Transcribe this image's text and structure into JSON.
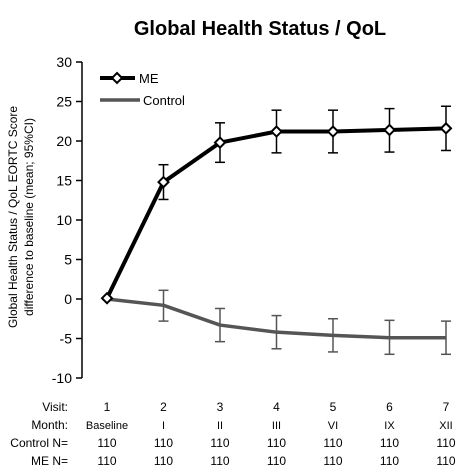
{
  "chart_data": {
    "type": "line",
    "title": "Global Health Status / QoL",
    "ylabel_line1": "Global Health Status / QoL  EORTC Score",
    "ylabel_line2": "difference to baseline (mean; 95%CI)",
    "ylim": [
      -10,
      30
    ],
    "yticks": [
      30,
      25,
      20,
      15,
      10,
      5,
      0,
      -5,
      -10
    ],
    "grid": false,
    "legend": "top-left",
    "x": [
      1,
      2,
      3,
      4,
      5,
      6,
      7
    ],
    "series": [
      {
        "name": "ME",
        "color": "#000000",
        "marker": "diamond",
        "values": [
          0.1,
          14.8,
          19.8,
          21.2,
          21.2,
          21.4,
          21.6
        ],
        "ci_low": [
          0.1,
          12.6,
          17.3,
          18.5,
          18.5,
          18.6,
          18.8
        ],
        "ci_high": [
          0.1,
          17.0,
          22.3,
          23.9,
          23.9,
          24.1,
          24.4
        ]
      },
      {
        "name": "Control",
        "color": "#555555",
        "marker": "none",
        "values": [
          0.0,
          -0.8,
          -3.3,
          -4.2,
          -4.6,
          -4.9,
          -4.9
        ],
        "ci_low": [
          0.0,
          -2.8,
          -5.4,
          -6.3,
          -6.7,
          -7.0,
          -7.0
        ],
        "ci_high": [
          0.0,
          1.1,
          -1.2,
          -2.1,
          -2.5,
          -2.7,
          -2.8
        ]
      }
    ],
    "table": {
      "visit_label": "Visit:",
      "visits": [
        "1",
        "2",
        "3",
        "4",
        "5",
        "6",
        "7"
      ],
      "month_label": "Month:",
      "months": [
        "Baseline",
        "I",
        "II",
        "III",
        "VI",
        "IX",
        "XII"
      ],
      "control_label": "Control N=",
      "control_n": [
        "110",
        "110",
        "110",
        "110",
        "110",
        "110",
        "110"
      ],
      "me_label": "ME N=",
      "me_n": [
        "110",
        "110",
        "110",
        "110",
        "110",
        "110",
        "110"
      ]
    }
  }
}
